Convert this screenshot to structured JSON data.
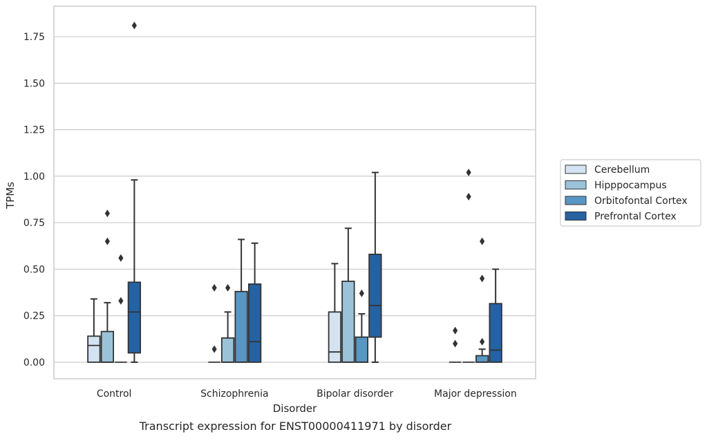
{
  "chart_data": {
    "type": "boxplot",
    "caption": "Transcript expression for ENST00000411971 by disorder",
    "xlabel": "Disorder",
    "ylabel": "TPMs",
    "ylim": [
      -0.09,
      1.9
    ],
    "yticks": [
      0.0,
      0.25,
      0.5,
      0.75,
      1.0,
      1.25,
      1.5,
      1.75
    ],
    "ytick_labels": [
      "0.00",
      "0.25",
      "0.50",
      "0.75",
      "1.00",
      "1.25",
      "1.50",
      "1.75"
    ],
    "grid": "horizontal",
    "legend_position": "right",
    "categories": [
      "Control",
      "Schizophrenia",
      "Bipolar disorder",
      "Major depression"
    ],
    "series": [
      {
        "name": "Cerebellum",
        "color": "#d4e3f1",
        "boxes": [
          {
            "whisker_low": 0.0,
            "q1": 0.0,
            "median": 0.09,
            "q3": 0.14,
            "whisker_high": 0.34,
            "outliers": []
          },
          {
            "whisker_low": 0.0,
            "q1": 0.0,
            "median": 0.0,
            "q3": 0.0,
            "whisker_high": 0.0,
            "outliers": [
              0.07,
              0.4
            ]
          },
          {
            "whisker_low": 0.0,
            "q1": 0.0,
            "median": 0.055,
            "q3": 0.27,
            "whisker_high": 0.53,
            "outliers": []
          },
          {
            "whisker_low": 0.0,
            "q1": 0.0,
            "median": 0.0,
            "q3": 0.0,
            "whisker_high": 0.0,
            "outliers": [
              0.1,
              0.17
            ]
          }
        ]
      },
      {
        "name": "Hipppocampus",
        "color": "#9ac3da",
        "boxes": [
          {
            "whisker_low": 0.0,
            "q1": 0.0,
            "median": 0.0,
            "q3": 0.165,
            "whisker_high": 0.32,
            "outliers": [
              0.65,
              0.8
            ]
          },
          {
            "whisker_low": 0.0,
            "q1": 0.0,
            "median": 0.0,
            "q3": 0.13,
            "whisker_high": 0.27,
            "outliers": [
              0.4
            ]
          },
          {
            "whisker_low": 0.0,
            "q1": 0.0,
            "median": 0.0,
            "q3": 0.435,
            "whisker_high": 0.72,
            "outliers": []
          },
          {
            "whisker_low": 0.0,
            "q1": 0.0,
            "median": 0.0,
            "q3": 0.0,
            "whisker_high": 0.0,
            "outliers": [
              0.89,
              1.02
            ]
          }
        ]
      },
      {
        "name": "Orbitofontal Cortex",
        "color": "#5896c4",
        "boxes": [
          {
            "whisker_low": 0.0,
            "q1": 0.0,
            "median": 0.0,
            "q3": 0.0,
            "whisker_high": 0.0,
            "outliers": [
              0.33,
              0.56
            ]
          },
          {
            "whisker_low": 0.0,
            "q1": 0.0,
            "median": 0.0,
            "q3": 0.38,
            "whisker_high": 0.66,
            "outliers": []
          },
          {
            "whisker_low": 0.0,
            "q1": 0.0,
            "median": 0.0,
            "q3": 0.135,
            "whisker_high": 0.26,
            "outliers": [
              0.37
            ]
          },
          {
            "whisker_low": 0.0,
            "q1": 0.0,
            "median": 0.0,
            "q3": 0.035,
            "whisker_high": 0.07,
            "outliers": [
              0.11,
              0.45,
              0.65
            ]
          }
        ]
      },
      {
        "name": "Prefrontal Cortex",
        "color": "#2562a2",
        "boxes": [
          {
            "whisker_low": 0.0,
            "q1": 0.05,
            "median": 0.27,
            "q3": 0.43,
            "whisker_high": 0.98,
            "outliers": [
              1.81
            ]
          },
          {
            "whisker_low": 0.0,
            "q1": 0.0,
            "median": 0.11,
            "q3": 0.42,
            "whisker_high": 0.64,
            "outliers": []
          },
          {
            "whisker_low": 0.0,
            "q1": 0.135,
            "median": 0.305,
            "q3": 0.58,
            "whisker_high": 1.02,
            "outliers": []
          },
          {
            "whisker_low": 0.0,
            "q1": 0.0,
            "median": 0.065,
            "q3": 0.315,
            "whisker_high": 0.5,
            "outliers": []
          }
        ]
      }
    ]
  }
}
